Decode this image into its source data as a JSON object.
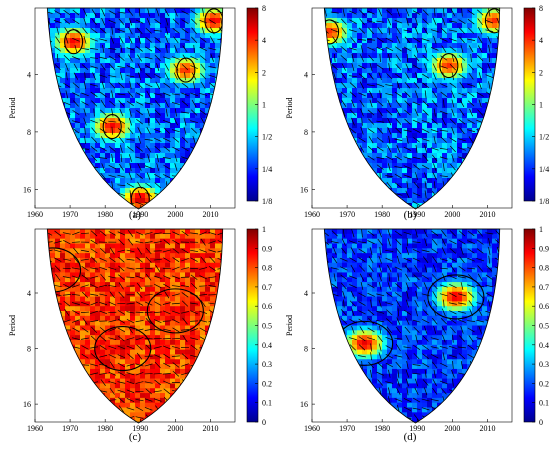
{
  "chart_data": [
    {
      "type": "heatmap",
      "panel_label": "(a)",
      "ylabel": "Period",
      "x_ticks": [
        "1960",
        "1970",
        "1980",
        "1990",
        "2000",
        "2010"
      ],
      "y_ticks": [
        "4",
        "8",
        "16"
      ],
      "colorbar_ticks": [
        "8",
        "4",
        "2",
        "1",
        "1/2",
        "1/4",
        "1/8"
      ],
      "colorbar_scale": "log2",
      "colorbar_range": [
        0.125,
        8
      ],
      "xlim": [
        1960,
        2017
      ],
      "overlay": "phase-arrows",
      "high_power_regions": [
        {
          "year": 1971,
          "period": 2.7,
          "level": 5
        },
        {
          "year": 1982,
          "period": 7.5,
          "level": 5
        },
        {
          "year": 1990,
          "period": 18,
          "level": 6
        },
        {
          "year": 2003,
          "period": 3.8,
          "level": 4
        },
        {
          "year": 2011,
          "period": 2.1,
          "level": 5
        }
      ]
    },
    {
      "type": "heatmap",
      "panel_label": "(b)",
      "ylabel": "Period",
      "x_ticks": [
        "1960",
        "1970",
        "1980",
        "1990",
        "2000",
        "2010"
      ],
      "y_ticks": [
        "4",
        "8",
        "16"
      ],
      "colorbar_ticks": [
        "8",
        "4",
        "2",
        "1",
        "1/2",
        "1/4",
        "1/8"
      ],
      "colorbar_scale": "log2",
      "colorbar_range": [
        0.125,
        8
      ],
      "xlim": [
        1960,
        2017
      ],
      "overlay": "phase-arrows",
      "high_power_regions": [
        {
          "year": 1965,
          "period": 2.4,
          "level": 4
        },
        {
          "year": 1999,
          "period": 3.6,
          "level": 4
        },
        {
          "year": 2012,
          "period": 2.1,
          "level": 4
        }
      ]
    },
    {
      "type": "heatmap",
      "panel_label": "(c)",
      "ylabel": "Period",
      "x_ticks": [
        "1960",
        "1970",
        "1980",
        "1990",
        "2000",
        "2010"
      ],
      "y_ticks": [
        "4",
        "8",
        "16"
      ],
      "colorbar_ticks": [
        "1",
        "0.9",
        "0.8",
        "0.7",
        "0.6",
        "0.5",
        "0.4",
        "0.3",
        "0.2",
        "0.1",
        "0"
      ],
      "colorbar_range": [
        0,
        1
      ],
      "xlim": [
        1960,
        2017
      ],
      "overlay": "phase-arrows",
      "high_coherence_regions": [
        {
          "year": 1965,
          "period": 3.0,
          "level": 0.95
        },
        {
          "year": 1985,
          "period": 8.0,
          "level": 0.95
        },
        {
          "year": 2000,
          "period": 5.0,
          "level": 0.9
        }
      ]
    },
    {
      "type": "heatmap",
      "panel_label": "(d)",
      "ylabel": "Period",
      "x_ticks": [
        "1960",
        "1970",
        "1980",
        "1990",
        "2000",
        "2010"
      ],
      "y_ticks": [
        "4",
        "8",
        "16"
      ],
      "colorbar_ticks": [
        "1",
        "0.9",
        "0.8",
        "0.7",
        "0.6",
        "0.5",
        "0.4",
        "0.3",
        "0.2",
        "0.1",
        "0"
      ],
      "colorbar_range": [
        0,
        1
      ],
      "xlim": [
        1960,
        2017
      ],
      "overlay": "phase-arrows",
      "high_coherence_regions": [
        {
          "year": 1975,
          "period": 7.5,
          "level": 0.9
        },
        {
          "year": 2001,
          "period": 4.2,
          "level": 0.9
        }
      ]
    }
  ]
}
